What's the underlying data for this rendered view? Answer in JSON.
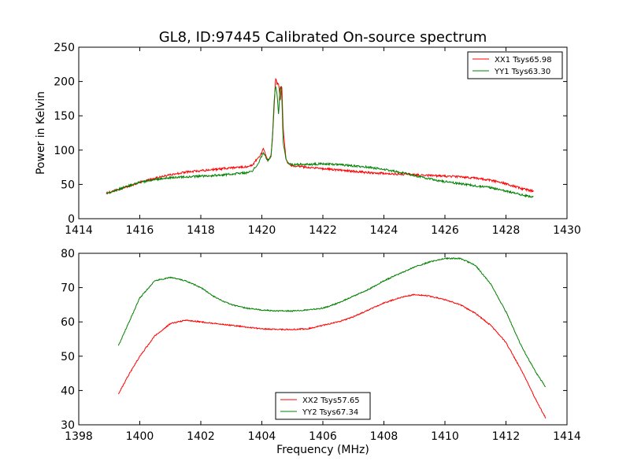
{
  "figure": {
    "title": "GL8, ID:97445 Calibrated On-source spectrum"
  },
  "chart_data": [
    {
      "type": "line",
      "title": "GL8, ID:97445 Calibrated On-source spectrum",
      "xlabel": "",
      "ylabel": "Power in Kelvin",
      "xlim": [
        1414,
        1430
      ],
      "ylim": [
        0,
        250
      ],
      "xticks": [
        "1414",
        "1416",
        "1418",
        "1420",
        "1422",
        "1424",
        "1426",
        "1428",
        "1430"
      ],
      "yticks": [
        "0",
        "50",
        "100",
        "150",
        "200",
        "250"
      ],
      "legend_position": "top-right",
      "grid": false,
      "series": [
        {
          "name": "XX1 Tsys65.98",
          "color": "#ff0000",
          "x": [
            1414.9,
            1415.5,
            1416.0,
            1416.5,
            1417.0,
            1417.5,
            1418.0,
            1418.5,
            1419.0,
            1419.5,
            1419.7,
            1419.8,
            1419.9,
            1420.0,
            1420.05,
            1420.15,
            1420.2,
            1420.3,
            1420.35,
            1420.4,
            1420.45,
            1420.5,
            1420.55,
            1420.6,
            1420.65,
            1420.7,
            1420.8,
            1420.9,
            1421.0,
            1421.5,
            1422.0,
            1422.5,
            1423.0,
            1423.5,
            1424.0,
            1424.5,
            1425.0,
            1425.5,
            1426.0,
            1426.5,
            1427.0,
            1427.5,
            1428.0,
            1428.5,
            1428.9
          ],
          "values": [
            37,
            45,
            53,
            59,
            64,
            68,
            70,
            72,
            74,
            76,
            78,
            85,
            89,
            96,
            102,
            90,
            85,
            92,
            118,
            160,
            205,
            196,
            198,
            170,
            200,
            130,
            85,
            79,
            77,
            75,
            73,
            71,
            69,
            67,
            66,
            65,
            64,
            63,
            62,
            61,
            59,
            56,
            51,
            44,
            40
          ]
        },
        {
          "name": "YY1 Tsys63.30",
          "color": "#008000",
          "x": [
            1414.9,
            1415.5,
            1416.0,
            1416.5,
            1417.0,
            1417.5,
            1418.0,
            1418.5,
            1419.0,
            1419.5,
            1419.7,
            1419.9,
            1420.0,
            1420.05,
            1420.15,
            1420.2,
            1420.3,
            1420.35,
            1420.4,
            1420.45,
            1420.5,
            1420.55,
            1420.6,
            1420.65,
            1420.7,
            1420.8,
            1420.9,
            1421.0,
            1421.5,
            1422.0,
            1422.5,
            1423.0,
            1423.5,
            1424.0,
            1424.5,
            1425.0,
            1425.5,
            1426.0,
            1426.5,
            1427.0,
            1427.5,
            1428.0,
            1428.5,
            1428.9
          ],
          "values": [
            36,
            46,
            53,
            57,
            60,
            61,
            62,
            63,
            65,
            67,
            70,
            82,
            92,
            96,
            88,
            85,
            90,
            120,
            170,
            195,
            180,
            150,
            195,
            185,
            110,
            85,
            80,
            79,
            79,
            80,
            79,
            77,
            75,
            72,
            68,
            63,
            58,
            54,
            51,
            48,
            45,
            40,
            35,
            31
          ]
        }
      ]
    },
    {
      "type": "line",
      "title": "",
      "xlabel": "Frequency (MHz)",
      "ylabel": "",
      "xlim": [
        1398,
        1414
      ],
      "ylim": [
        30,
        80
      ],
      "xticks": [
        "1398",
        "1400",
        "1402",
        "1404",
        "1406",
        "1408",
        "1410",
        "1412",
        "1414"
      ],
      "yticks": [
        "30",
        "40",
        "50",
        "60",
        "70",
        "80"
      ],
      "legend_position": "bottom-center",
      "grid": false,
      "series": [
        {
          "name": "XX2 Tsys57.65",
          "color": "#ff0000",
          "x": [
            1399.3,
            1399.6,
            1400.0,
            1400.5,
            1401.0,
            1401.5,
            1402.0,
            1402.5,
            1403.0,
            1403.5,
            1404.0,
            1404.5,
            1405.0,
            1405.5,
            1406.0,
            1406.5,
            1407.0,
            1407.5,
            1408.0,
            1408.5,
            1409.0,
            1409.5,
            1410.0,
            1410.5,
            1411.0,
            1411.5,
            1412.0,
            1412.5,
            1413.0,
            1413.3
          ],
          "values": [
            39,
            44,
            50,
            56,
            59.5,
            60.5,
            60,
            59.5,
            59,
            58.5,
            58,
            57.8,
            57.8,
            58,
            59,
            60,
            61.5,
            63.5,
            65.5,
            67,
            68,
            67.5,
            66.5,
            65,
            62.5,
            59,
            54,
            46,
            37,
            32
          ]
        },
        {
          "name": "YY2 Tsys67.34",
          "color": "#008000",
          "x": [
            1399.3,
            1399.6,
            1400.0,
            1400.5,
            1401.0,
            1401.5,
            1402.0,
            1402.5,
            1403.0,
            1403.5,
            1404.0,
            1404.5,
            1405.0,
            1405.5,
            1406.0,
            1406.5,
            1407.0,
            1407.5,
            1408.0,
            1408.5,
            1409.0,
            1409.5,
            1410.0,
            1410.5,
            1411.0,
            1411.5,
            1412.0,
            1412.5,
            1413.0,
            1413.3
          ],
          "values": [
            53,
            59,
            67,
            72,
            73,
            72,
            70,
            67,
            65,
            64,
            63.5,
            63.2,
            63.2,
            63.5,
            64,
            65.5,
            67.5,
            69.5,
            72,
            74,
            76,
            77.5,
            78.5,
            78.5,
            76.5,
            71,
            63,
            53,
            45,
            41
          ]
        }
      ]
    }
  ]
}
